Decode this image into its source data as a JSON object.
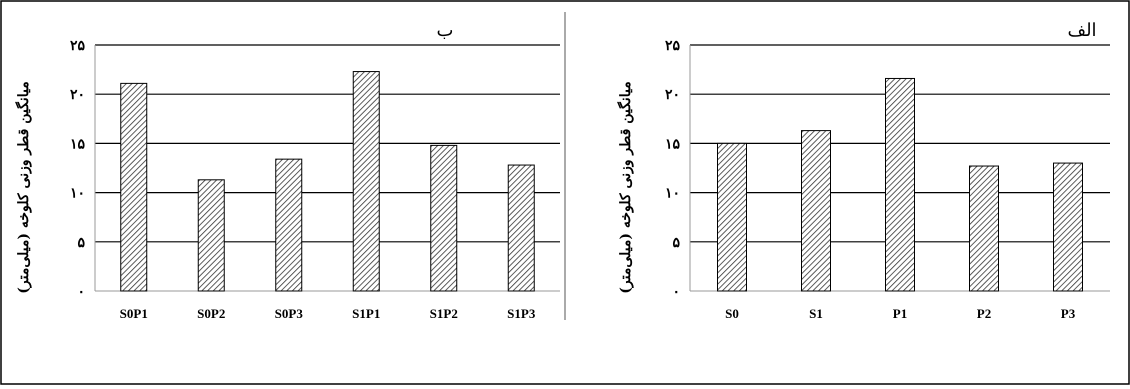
{
  "chart_data": [
    {
      "type": "bar",
      "panel_label": "ب",
      "title": "",
      "xlabel": "",
      "ylabel": "میانگین قطر وزنی کلوخه (میلی‌متر)",
      "categories": [
        "S0P1",
        "S0P2",
        "S0P3",
        "S1P1",
        "S1P2",
        "S1P3"
      ],
      "values": [
        21.1,
        11.3,
        13.4,
        22.3,
        14.8,
        12.8
      ],
      "ylim": [
        0,
        25
      ],
      "yticks": [
        0,
        5,
        10,
        15,
        20,
        25
      ],
      "ytick_labels": [
        "۰",
        "۵",
        "۱۰",
        "۱۵",
        "۲۰",
        "۲۵"
      ],
      "grid": true
    },
    {
      "type": "bar",
      "panel_label": "الف",
      "title": "",
      "xlabel": "",
      "ylabel": "میانگین قطر وزنی کلوخه (میلی‌متر)",
      "categories": [
        "S0",
        "S1",
        "P1",
        "P2",
        "P3"
      ],
      "values": [
        15.0,
        16.3,
        21.6,
        12.7,
        13.0
      ],
      "ylim": [
        0,
        25
      ],
      "yticks": [
        0,
        5,
        10,
        15,
        20,
        25
      ],
      "ytick_labels": [
        "۰",
        "۵",
        "۱۰",
        "۱۵",
        "۲۰",
        "۲۵"
      ],
      "grid": true
    }
  ]
}
